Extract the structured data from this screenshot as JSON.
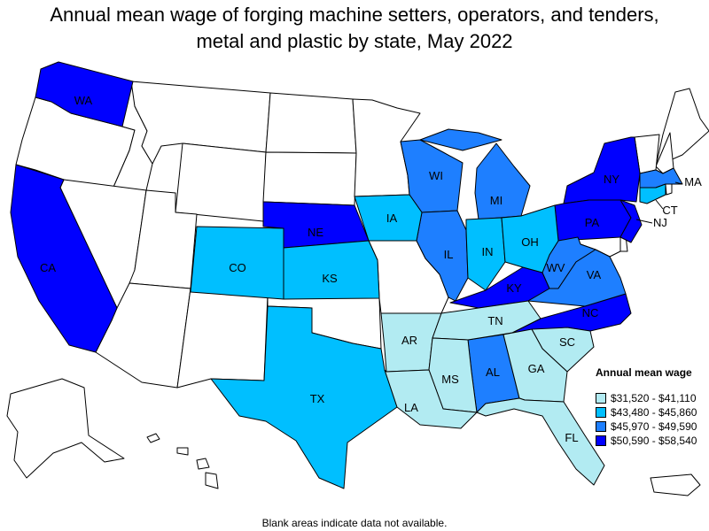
{
  "title": "Annual mean wage of forging machine setters, operators, and tenders, metal and plastic by state, May 2022",
  "title_lines": [
    "Annual mean wage of forging machine setters, operators, and tenders,",
    "metal and plastic by state, May 2022"
  ],
  "note": "Blank areas indicate data not available.",
  "legend": {
    "title": "Annual mean wage",
    "items": [
      {
        "label": "$31,520 - $41,110",
        "color": "#b2ebf2"
      },
      {
        "label": "$43,480 - $45,860",
        "color": "#00bfff"
      },
      {
        "label": "$45,970 - $49,590",
        "color": "#1e7fff"
      },
      {
        "label": "$50,590 - $58,540",
        "color": "#0000ff"
      }
    ]
  },
  "colors": {
    "blank": "#ffffff",
    "tier1": "#b2ebf2",
    "tier2": "#00bfff",
    "tier3": "#1e7fff",
    "tier4": "#0000ff"
  },
  "states": {
    "WA": {
      "label": "WA",
      "tier": 4
    },
    "CA": {
      "label": "CA",
      "tier": 4
    },
    "NE": {
      "label": "NE",
      "tier": 4
    },
    "NY": {
      "label": "NY",
      "tier": 4
    },
    "PA": {
      "label": "PA",
      "tier": 4
    },
    "NJ": {
      "label": "NJ",
      "tier": 4
    },
    "KY": {
      "label": "KY",
      "tier": 4
    },
    "NC": {
      "label": "NC",
      "tier": 4
    },
    "WI": {
      "label": "WI",
      "tier": 3
    },
    "MI": {
      "label": "MI",
      "tier": 3
    },
    "IL": {
      "label": "IL",
      "tier": 3
    },
    "WV": {
      "label": "WV",
      "tier": 3
    },
    "VA": {
      "label": "VA",
      "tier": 3
    },
    "AL": {
      "label": "AL",
      "tier": 3
    },
    "MA": {
      "label": "MA",
      "tier": 3
    },
    "IA": {
      "label": "IA",
      "tier": 2
    },
    "CO": {
      "label": "CO",
      "tier": 2
    },
    "KS": {
      "label": "KS",
      "tier": 2
    },
    "IN": {
      "label": "IN",
      "tier": 2
    },
    "OH": {
      "label": "OH",
      "tier": 2
    },
    "TX": {
      "label": "TX",
      "tier": 2
    },
    "CT": {
      "label": "CT",
      "tier": 2
    },
    "AR": {
      "label": "AR",
      "tier": 1
    },
    "TN": {
      "label": "TN",
      "tier": 1
    },
    "SC": {
      "label": "SC",
      "tier": 1
    },
    "GA": {
      "label": "GA",
      "tier": 1
    },
    "MS": {
      "label": "MS",
      "tier": 1
    },
    "LA": {
      "label": "LA",
      "tier": 1
    },
    "FL": {
      "label": "FL",
      "tier": 1
    }
  }
}
